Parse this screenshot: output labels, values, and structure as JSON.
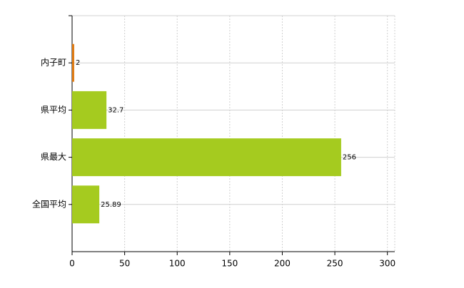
{
  "chart_data": {
    "type": "bar",
    "orientation": "horizontal",
    "categories": [
      "内子町",
      "県平均",
      "県最大",
      "全国平均"
    ],
    "values": [
      2,
      32.7,
      256,
      25.89
    ],
    "colors": [
      "#e07a10",
      "#a5cb1f",
      "#a5cb1f",
      "#a5cb1f"
    ],
    "xlim": [
      0,
      307
    ],
    "xticks": [
      0,
      50,
      100,
      150,
      200,
      250,
      300
    ],
    "grid": true
  }
}
